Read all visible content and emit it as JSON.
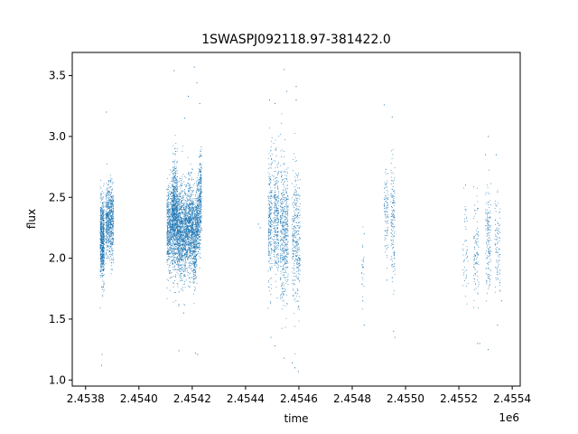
{
  "chart_data": {
    "type": "scatter",
    "title": "1SWASPJ092118.97-381422.0",
    "xlabel": "time",
    "ylabel": "flux",
    "x_offset_label": "1e6",
    "xlim": [
      2.45375,
      2.45543
    ],
    "ylim": [
      0.95,
      3.69
    ],
    "x_ticks": [
      2.4538,
      2.454,
      2.4542,
      2.4544,
      2.4546,
      2.4548,
      2.455,
      2.4552,
      2.4554
    ],
    "x_tick_labels": [
      "2.4538",
      "2.4540",
      "2.4542",
      "2.4544",
      "2.4546",
      "2.4548",
      "2.4550",
      "2.4552",
      "2.4554"
    ],
    "y_ticks": [
      1.0,
      1.5,
      2.0,
      2.5,
      3.0,
      3.5
    ],
    "y_tick_labels": [
      "1.0",
      "1.5",
      "2.0",
      "2.5",
      "3.0",
      "3.5"
    ],
    "grid": false,
    "marker_color": "#1f77b4",
    "series": [
      {
        "clusters": [
          {
            "x": [
              2.453855,
              2.45387
            ],
            "y_center": 2.15,
            "y_spread": 0.32,
            "n": 700,
            "trend": 0.0
          },
          {
            "x": [
              2.453875,
              2.453905
            ],
            "y_center": 2.3,
            "y_spread": 0.3,
            "n": 700,
            "trend": 0.0
          },
          {
            "x": [
              2.454105,
              2.454125
            ],
            "y_center": 2.25,
            "y_spread": 0.35,
            "n": 500,
            "trend": 0.0
          },
          {
            "x": [
              2.454125,
              2.454145
            ],
            "y_center": 2.35,
            "y_spread": 0.42,
            "n": 900,
            "trend": 0.0
          },
          {
            "x": [
              2.454145,
              2.454175
            ],
            "y_center": 2.2,
            "y_spread": 0.38,
            "n": 900,
            "trend": 0.0
          },
          {
            "x": [
              2.454175,
              2.454205
            ],
            "y_center": 2.25,
            "y_spread": 0.35,
            "n": 900,
            "trend": 0.0
          },
          {
            "x": [
              2.454205,
              2.454235
            ],
            "y_center": 2.3,
            "y_spread": 0.35,
            "n": 900,
            "trend": 0.5
          },
          {
            "x": [
              2.454485,
              2.4545
            ],
            "y_center": 2.3,
            "y_spread": 0.55,
            "n": 250,
            "trend": 0.0
          },
          {
            "x": [
              2.454505,
              2.454525
            ],
            "y_center": 2.35,
            "y_spread": 0.5,
            "n": 300,
            "trend": 0.0
          },
          {
            "x": [
              2.45453,
              2.45456
            ],
            "y_center": 2.2,
            "y_spread": 0.55,
            "n": 500,
            "trend": 0.0
          },
          {
            "x": [
              2.454575,
              2.454605
            ],
            "y_center": 2.15,
            "y_spread": 0.55,
            "n": 350,
            "trend": 0.0
          },
          {
            "x": [
              2.454835,
              2.454845
            ],
            "y_center": 1.95,
            "y_spread": 0.25,
            "n": 25,
            "trend": 0.0
          },
          {
            "x": [
              2.45492,
              2.454935
            ],
            "y_center": 2.4,
            "y_spread": 0.4,
            "n": 100,
            "trend": 0.0
          },
          {
            "x": [
              2.454945,
              2.45496
            ],
            "y_center": 2.3,
            "y_spread": 0.5,
            "n": 150,
            "trend": 0.0
          },
          {
            "x": [
              2.455215,
              2.455235
            ],
            "y_center": 2.1,
            "y_spread": 0.35,
            "n": 50,
            "trend": 0.0
          },
          {
            "x": [
              2.455255,
              2.455275
            ],
            "y_center": 2.05,
            "y_spread": 0.4,
            "n": 100,
            "trend": 0.0
          },
          {
            "x": [
              2.4553,
              2.45532
            ],
            "y_center": 2.15,
            "y_spread": 0.4,
            "n": 150,
            "trend": 0.0
          },
          {
            "x": [
              2.455335,
              2.455355
            ],
            "y_center": 2.1,
            "y_spread": 0.35,
            "n": 100,
            "trend": 0.0
          }
        ],
        "outliers": [
          {
            "x": 2.453878,
            "y": 3.2
          },
          {
            "x": 2.453862,
            "y": 1.21
          },
          {
            "x": 2.45386,
            "y": 1.12
          },
          {
            "x": 2.454132,
            "y": 3.54
          },
          {
            "x": 2.454185,
            "y": 3.33
          },
          {
            "x": 2.454172,
            "y": 3.15
          },
          {
            "x": 2.454208,
            "y": 3.57
          },
          {
            "x": 2.454218,
            "y": 3.44
          },
          {
            "x": 2.45415,
            "y": 1.24
          },
          {
            "x": 2.454212,
            "y": 1.22
          },
          {
            "x": 2.45422,
            "y": 1.21
          },
          {
            "x": 2.454228,
            "y": 3.27
          },
          {
            "x": 2.45415,
            "y": 1.62
          },
          {
            "x": 2.454168,
            "y": 1.55
          },
          {
            "x": 2.45449,
            "y": 3.3
          },
          {
            "x": 2.45451,
            "y": 3.27
          },
          {
            "x": 2.454545,
            "y": 3.55
          },
          {
            "x": 2.454555,
            "y": 3.37
          },
          {
            "x": 2.45459,
            "y": 3.41
          },
          {
            "x": 2.45459,
            "y": 3.3
          },
          {
            "x": 2.454495,
            "y": 1.35
          },
          {
            "x": 2.45451,
            "y": 1.28
          },
          {
            "x": 2.454545,
            "y": 1.18
          },
          {
            "x": 2.454575,
            "y": 1.14
          },
          {
            "x": 2.454598,
            "y": 1.07
          },
          {
            "x": 2.454585,
            "y": 1.1
          },
          {
            "x": 2.454448,
            "y": 2.28
          },
          {
            "x": 2.454455,
            "y": 2.25
          },
          {
            "x": 2.45484,
            "y": 1.65
          },
          {
            "x": 2.454845,
            "y": 1.45
          },
          {
            "x": 2.454845,
            "y": 2.2
          },
          {
            "x": 2.45492,
            "y": 3.26
          },
          {
            "x": 2.45495,
            "y": 3.16
          },
          {
            "x": 2.45496,
            "y": 1.35
          },
          {
            "x": 2.454955,
            "y": 1.4
          },
          {
            "x": 2.45493,
            "y": 1.82
          },
          {
            "x": 2.455225,
            "y": 2.6
          },
          {
            "x": 2.45527,
            "y": 1.3
          },
          {
            "x": 2.455278,
            "y": 1.3
          },
          {
            "x": 2.45531,
            "y": 3.0
          },
          {
            "x": 2.4553,
            "y": 2.85
          },
          {
            "x": 2.45531,
            "y": 1.25
          },
          {
            "x": 2.45534,
            "y": 2.85
          },
          {
            "x": 2.455345,
            "y": 1.45
          },
          {
            "x": 2.45536,
            "y": 1.65
          }
        ]
      }
    ]
  }
}
